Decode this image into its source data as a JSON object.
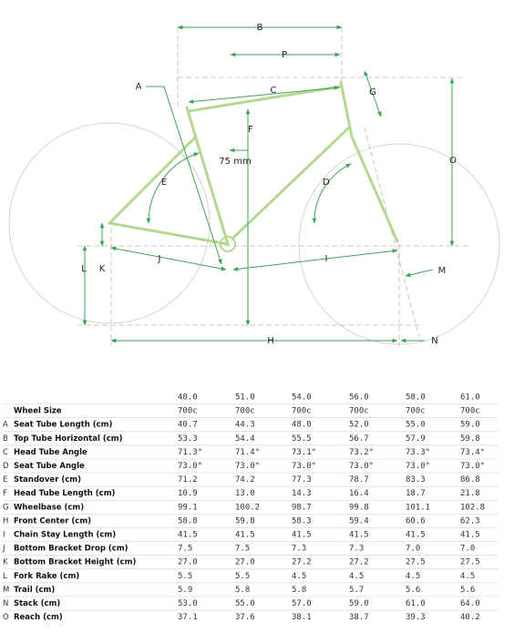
{
  "diagram": {
    "labels": [
      "A",
      "B",
      "P",
      "C",
      "G",
      "F",
      "75 mm",
      "O",
      "D",
      "E",
      "J",
      "I",
      "L",
      "K",
      "M",
      "H",
      "N"
    ]
  },
  "table": {
    "sizes": [
      "48.0",
      "51.0",
      "54.0",
      "56.0",
      "58.0",
      "61.0"
    ],
    "rows": [
      {
        "name": "Wheel Size",
        "values": [
          "700c",
          "700c",
          "700c",
          "700c",
          "700c",
          "700c"
        ]
      },
      {
        "letter": "A",
        "name": "Seat Tube Length (cm)",
        "values": [
          "40.7",
          "44.3",
          "48.0",
          "52.0",
          "55.0",
          "59.0"
        ]
      },
      {
        "letter": "B",
        "name": "Top Tube Horizontal (cm)",
        "values": [
          "53.3",
          "54.4",
          "55.5",
          "56.7",
          "57.9",
          "59.8"
        ]
      },
      {
        "letter": "C",
        "name": "Head Tube Angle",
        "values": [
          "71.3°",
          "71.4°",
          "73.1°",
          "73.2°",
          "73.3°",
          "73.4°"
        ]
      },
      {
        "letter": "D",
        "name": "Seat Tube Angle",
        "values": [
          "73.0°",
          "73.0°",
          "73.0°",
          "73.0°",
          "73.0°",
          "73.0°"
        ]
      },
      {
        "letter": "E",
        "name": "Standover (cm)",
        "values": [
          "71.2",
          "74.2",
          "77.3",
          "78.7",
          "83.3",
          "86.8"
        ]
      },
      {
        "letter": "F",
        "name": "Head Tube Length (cm)",
        "values": [
          "10.9",
          "13.0",
          "14.3",
          "16.4",
          "18.7",
          "21.8"
        ]
      },
      {
        "letter": "G",
        "name": "Wheelbase (cm)",
        "values": [
          "99.1",
          "100.2",
          "98.7",
          "99.8",
          "101.1",
          "102.8"
        ]
      },
      {
        "letter": "H",
        "name": "Front Center (cm)",
        "values": [
          "58.8",
          "59.8",
          "58.3",
          "59.4",
          "60.6",
          "62.3"
        ]
      },
      {
        "letter": "I",
        "name": "Chain Stay Length (cm)",
        "values": [
          "41.5",
          "41.5",
          "41.5",
          "41.5",
          "41.5",
          "41.5"
        ]
      },
      {
        "letter": "J",
        "name": "Bottom Bracket Drop (cm)",
        "values": [
          "7.5",
          "7.5",
          "7.3",
          "7.3",
          "7.0",
          "7.0"
        ]
      },
      {
        "letter": "K",
        "name": "Bottom Bracket Height (cm)",
        "values": [
          "27.0",
          "27.0",
          "27.2",
          "27.2",
          "27.5",
          "27.5"
        ]
      },
      {
        "letter": "L",
        "name": "Fork Rake (cm)",
        "values": [
          "5.5",
          "5.5",
          "4.5",
          "4.5",
          "4.5",
          "4.5"
        ]
      },
      {
        "letter": "M",
        "name": "Trail (cm)",
        "values": [
          "5.9",
          "5.8",
          "5.8",
          "5.7",
          "5.6",
          "5.6"
        ]
      },
      {
        "letter": "N",
        "name": "Stack (cm)",
        "values": [
          "53.0",
          "55.0",
          "57.0",
          "59.0",
          "61.0",
          "64.0"
        ]
      },
      {
        "letter": "O",
        "name": "Reach (cm)",
        "values": [
          "37.1",
          "37.6",
          "38.1",
          "38.7",
          "39.3",
          "40.2"
        ]
      }
    ]
  }
}
